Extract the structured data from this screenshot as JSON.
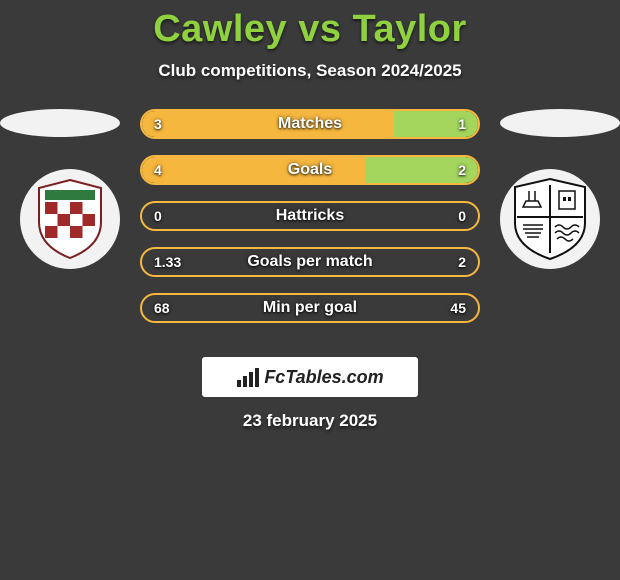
{
  "title": "Cawley vs Taylor",
  "subtitle": "Club competitions, Season 2024/2025",
  "date": "23 february 2025",
  "fctables_label": "FcTables.com",
  "colors": {
    "accent": "#8fd13f",
    "left_fill": "#f6b73e",
    "right_fill": "#a4d65e",
    "row_border": "#f6b73e",
    "background": "#3a3a3a",
    "text": "#ffffff",
    "oval": "#f2f2f2"
  },
  "metrics": [
    {
      "label": "Matches",
      "left_value": "3",
      "right_value": "1",
      "left_raw": 3,
      "right_raw": 1,
      "left_pct": 75,
      "right_pct": 25
    },
    {
      "label": "Goals",
      "left_value": "4",
      "right_value": "2",
      "left_raw": 4,
      "right_raw": 2,
      "left_pct": 66.7,
      "right_pct": 33.3
    },
    {
      "label": "Hattricks",
      "left_value": "0",
      "right_value": "0",
      "left_raw": 0,
      "right_raw": 0,
      "left_pct": 0,
      "right_pct": 0
    },
    {
      "label": "Goals per match",
      "left_value": "1.33",
      "right_value": "2",
      "left_raw": 1.33,
      "right_raw": 2,
      "left_pct": 0,
      "right_pct": 0
    },
    {
      "label": "Min per goal",
      "left_value": "68",
      "right_value": "45",
      "left_raw": 68,
      "right_raw": 45,
      "left_pct": 0,
      "right_pct": 0
    }
  ],
  "crest_left": {
    "name": "left-club-crest"
  },
  "crest_right": {
    "name": "right-club-crest"
  }
}
